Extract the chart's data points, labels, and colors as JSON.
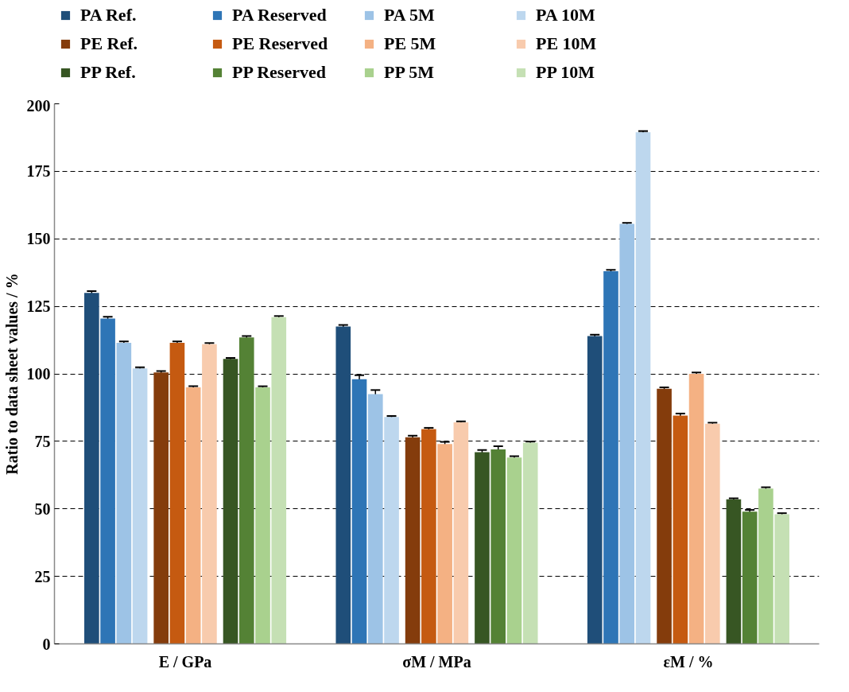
{
  "chart_data": {
    "type": "bar",
    "ylabel": "Ratio to data sheet values / %",
    "categories": [
      "E / GPa",
      "σM / MPa",
      "εM / %"
    ],
    "ylim": [
      0,
      200
    ],
    "yticks": [
      0,
      25,
      50,
      75,
      100,
      125,
      150,
      175,
      200
    ],
    "grid": "y",
    "legend": "top",
    "series": [
      {
        "name": "PA Ref.",
        "color": "#1f4e79",
        "values": [
          130,
          117.5,
          114
        ],
        "errors": [
          0.6,
          0.6,
          0.5
        ]
      },
      {
        "name": "PA Reserved",
        "color": "#2e75b6",
        "values": [
          120.5,
          98,
          138
        ],
        "errors": [
          0.6,
          1.5,
          0.5
        ]
      },
      {
        "name": "PA 5M",
        "color": "#9dc3e6",
        "values": [
          111.5,
          92.5,
          155.5
        ],
        "errors": [
          0.5,
          1.5,
          0.4
        ]
      },
      {
        "name": "PA 10M",
        "color": "#bdd7ee",
        "values": [
          102,
          84,
          189.5
        ],
        "errors": [
          0.4,
          0.4,
          0.4
        ]
      },
      {
        "name": "PE Ref.",
        "color": "#843c0c",
        "values": [
          100.5,
          76.5,
          94.5
        ],
        "errors": [
          0.5,
          0.6,
          0.5
        ]
      },
      {
        "name": "PE Reserved",
        "color": "#c55a11",
        "values": [
          111.5,
          79.5,
          84.5
        ],
        "errors": [
          0.5,
          0.5,
          0.8
        ]
      },
      {
        "name": "PE 5M",
        "color": "#f4b183",
        "values": [
          95,
          74,
          100
        ],
        "errors": [
          0.4,
          0.8,
          0.5
        ]
      },
      {
        "name": "PE 10M",
        "color": "#f8cbad",
        "values": [
          111,
          82,
          81.5
        ],
        "errors": [
          0.4,
          0.4,
          0.4
        ]
      },
      {
        "name": "PP Ref.",
        "color": "#375623",
        "values": [
          105.5,
          71,
          53.5
        ],
        "errors": [
          0.4,
          0.8,
          0.4
        ]
      },
      {
        "name": "PP Reserved",
        "color": "#548235",
        "values": [
          113.5,
          72,
          49
        ],
        "errors": [
          0.5,
          1.2,
          0.6
        ]
      },
      {
        "name": "PP 5M",
        "color": "#a9d18e",
        "values": [
          95,
          69,
          57.5
        ],
        "errors": [
          0.4,
          0.5,
          0.5
        ]
      },
      {
        "name": "PP 10M",
        "color": "#c5e0b4",
        "values": [
          121,
          74.5,
          48
        ],
        "errors": [
          0.4,
          0.4,
          0.4
        ]
      }
    ]
  }
}
